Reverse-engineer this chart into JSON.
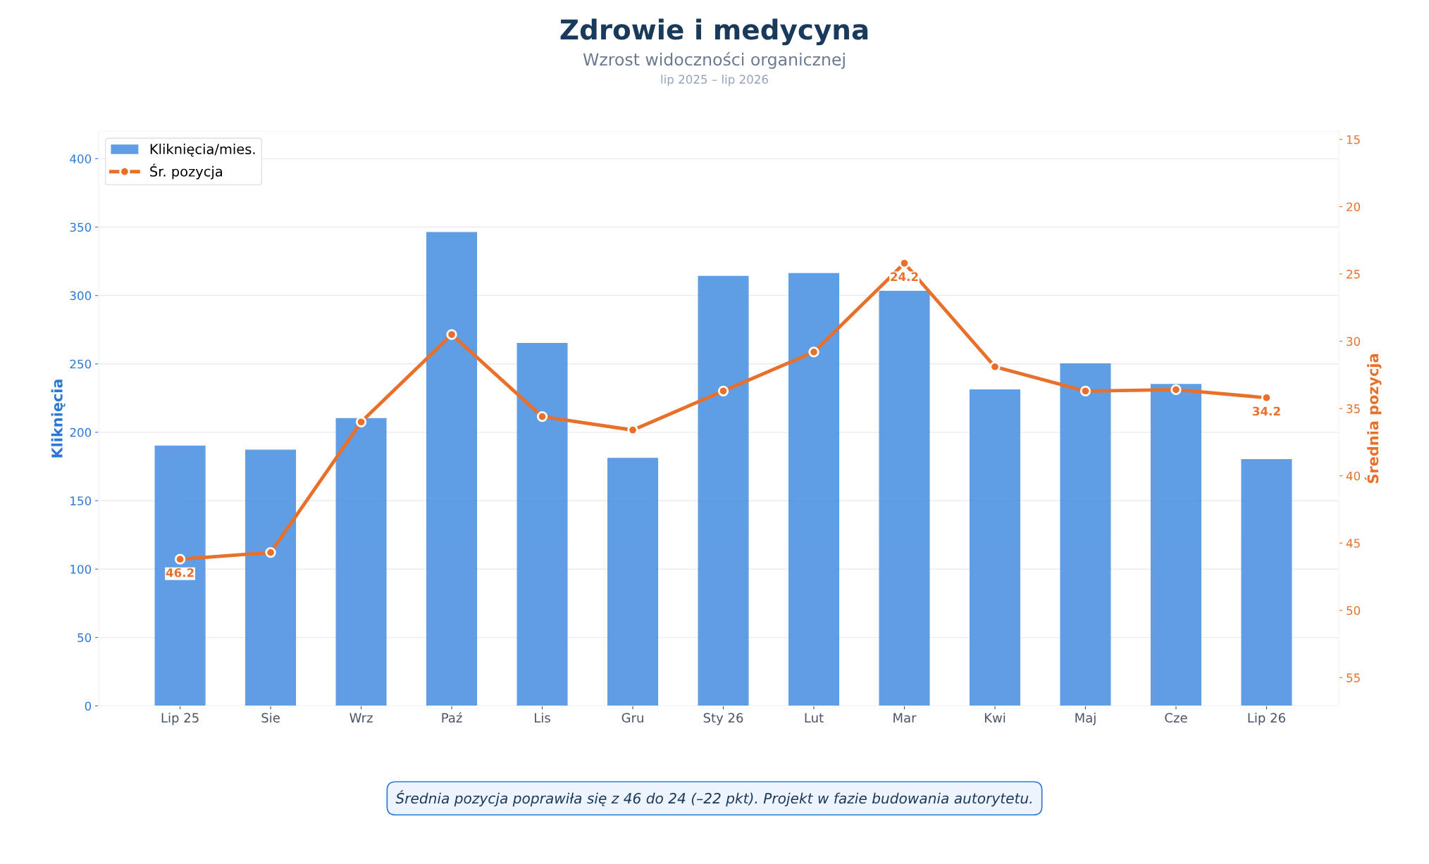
{
  "chart_data": {
    "type": "bar",
    "title": "Zdrowie i medycyna",
    "subtitle": "Wzrost widoczności organicznej",
    "annotations": [
      "lip 2025 – lip 2026",
      "Średnia pozycja poprawiła się z 46 do 24 (–22 pkt). Projekt w fazie budowania autorytetu."
    ],
    "categories": [
      "Lip 25",
      "Sie",
      "Wrz",
      "Paź",
      "Lis",
      "Gru",
      "Sty 26",
      "Lut",
      "Mar",
      "Kwi",
      "Maj",
      "Cze",
      "Lip 26"
    ],
    "ylabel": "Kliknięcia",
    "y2label": "Średnia pozycja",
    "series": [
      {
        "name": "Kliknięcia/mies.",
        "color": "#4a90e2",
        "values": [
          190,
          187,
          210,
          346,
          265,
          181,
          314,
          316,
          303,
          231,
          250,
          235,
          180
        ]
      },
      {
        "name": "Śr. pozycja",
        "type": "line",
        "axis": "y2",
        "color": "#e8702a",
        "values": [
          46.2,
          45.7,
          36.0,
          29.5,
          35.6,
          36.6,
          33.7,
          30.8,
          24.2,
          31.9,
          33.7,
          33.6,
          34.2
        ],
        "value_labels": [
          "46.2",
          null,
          null,
          null,
          null,
          null,
          null,
          null,
          "24.2",
          null,
          null,
          null,
          "34.2"
        ]
      }
    ],
    "ylim": [
      0,
      420
    ],
    "yticks": [
      0,
      50,
      100,
      150,
      200,
      250,
      300,
      350,
      400
    ],
    "y2lim": [
      57.1,
      14.4
    ],
    "y2ticks": [
      15,
      20,
      25,
      30,
      35,
      40,
      45,
      50,
      55
    ],
    "grid": "y",
    "legend": "top left",
    "marker": "circle",
    "line_style": "solid"
  }
}
